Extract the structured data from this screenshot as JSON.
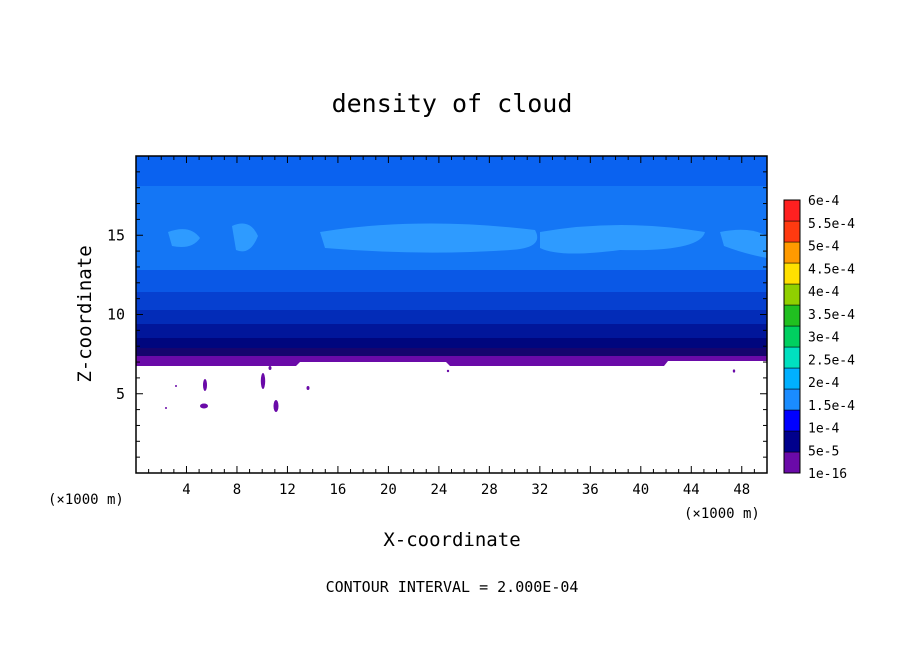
{
  "title": "density of cloud",
  "footer": "CONTOUR INTERVAL = 2.000E-04",
  "chart_data": {
    "type": "heatmap",
    "title": "density of cloud",
    "xlabel": "X-coordinate",
    "ylabel": "Z-coordinate",
    "x_unit_left": "(×1000 m)",
    "x_unit_right": "(×1000 m)",
    "xlim": [
      0,
      50
    ],
    "ylim": [
      0,
      20
    ],
    "x_ticks": [
      "4",
      "8",
      "12",
      "16",
      "20",
      "24",
      "28",
      "32",
      "36",
      "40",
      "44",
      "48"
    ],
    "y_ticks": [
      "5",
      "10",
      "15"
    ],
    "colorbar": {
      "levels": [
        "1e-16",
        "5e-5",
        "1e-4",
        "1.5e-4",
        "2e-4",
        "2.5e-4",
        "3e-4",
        "3.5e-4",
        "4e-4",
        "4.5e-4",
        "5e-4",
        "5.5e-4",
        "6e-4"
      ],
      "colors": [
        "#6a0aa8",
        "#00008c",
        "#0000ff",
        "#1a8cff",
        "#00b0ff",
        "#00e0c0",
        "#00d060",
        "#20c020",
        "#90d000",
        "#ffe000",
        "#ff9a00",
        "#ff3a10",
        "#ff2020",
        "#ff8a8a"
      ]
    },
    "profile": [
      {
        "z": 7.0,
        "value": "1e-16"
      },
      {
        "z": 7.6,
        "value": "5e-5"
      },
      {
        "z": 9.5,
        "value": "1e-4"
      },
      {
        "z": 14.0,
        "value": "1.5e-4"
      },
      {
        "z": 18.0,
        "value": "1e-4"
      }
    ],
    "cloud_base_z": 7.0,
    "grid": false
  }
}
